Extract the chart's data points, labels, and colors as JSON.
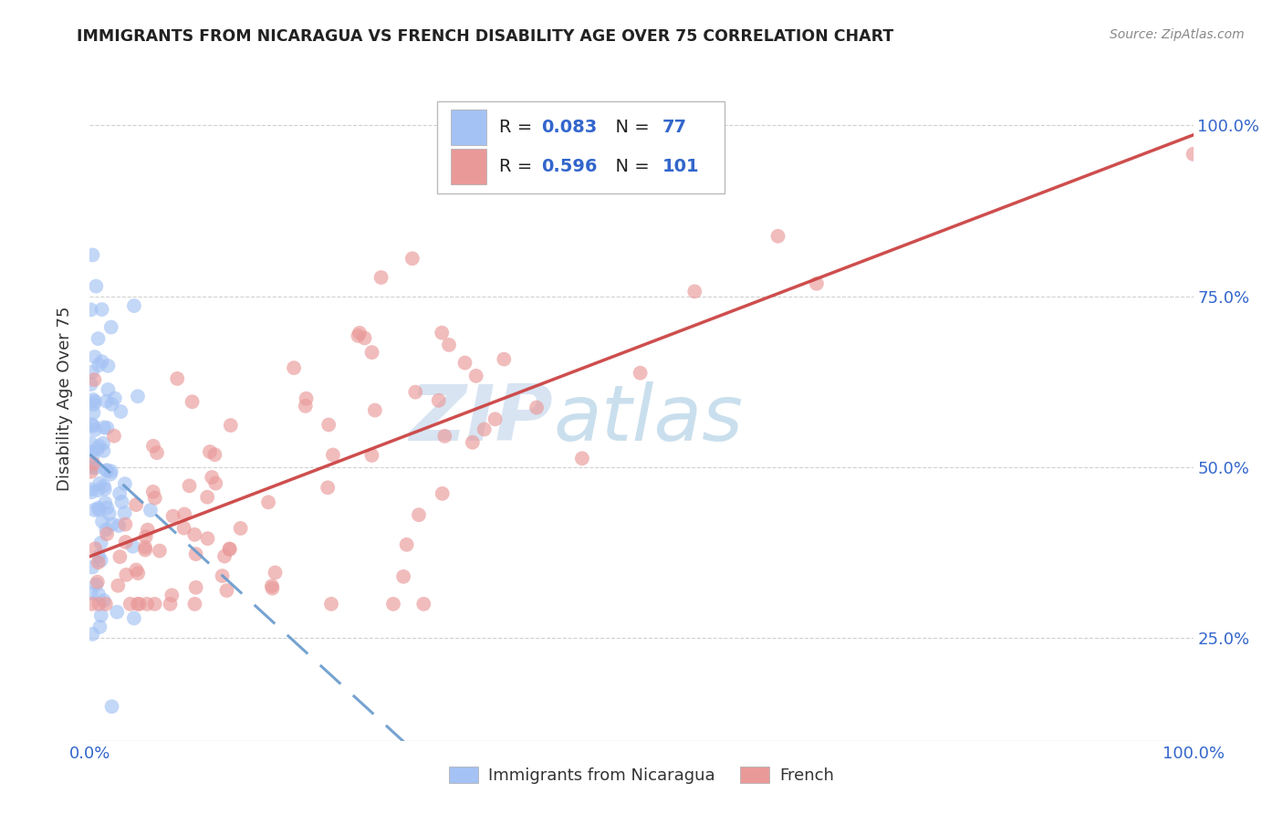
{
  "title": "IMMIGRANTS FROM NICARAGUA VS FRENCH DISABILITY AGE OVER 75 CORRELATION CHART",
  "source": "Source: ZipAtlas.com",
  "ylabel": "Disability Age Over 75",
  "ytick_labels": [
    "25.0%",
    "50.0%",
    "75.0%",
    "100.0%"
  ],
  "ytick_values": [
    0.25,
    0.5,
    0.75,
    1.0
  ],
  "blue_R": 0.083,
  "blue_N": 77,
  "pink_R": 0.596,
  "pink_N": 101,
  "blue_color": "#a4c2f4",
  "pink_color": "#ea9999",
  "blue_line_color": "#6699cc",
  "pink_line_color": "#cc4444",
  "legend_box_color": "#ffffff",
  "legend_border_color": "#cccccc",
  "R_label_color": "#000000",
  "N_value_color": "#3366cc",
  "watermark_color": "#d0e4f7",
  "background_color": "#ffffff",
  "grid_color": "#cccccc",
  "tick_color": "#3366cc",
  "ylabel_color": "#333333",
  "title_color": "#222222",
  "source_color": "#888888",
  "blue_line_intercept": 0.47,
  "blue_line_slope": 0.28,
  "pink_line_intercept": 0.37,
  "pink_line_slope": 0.63
}
